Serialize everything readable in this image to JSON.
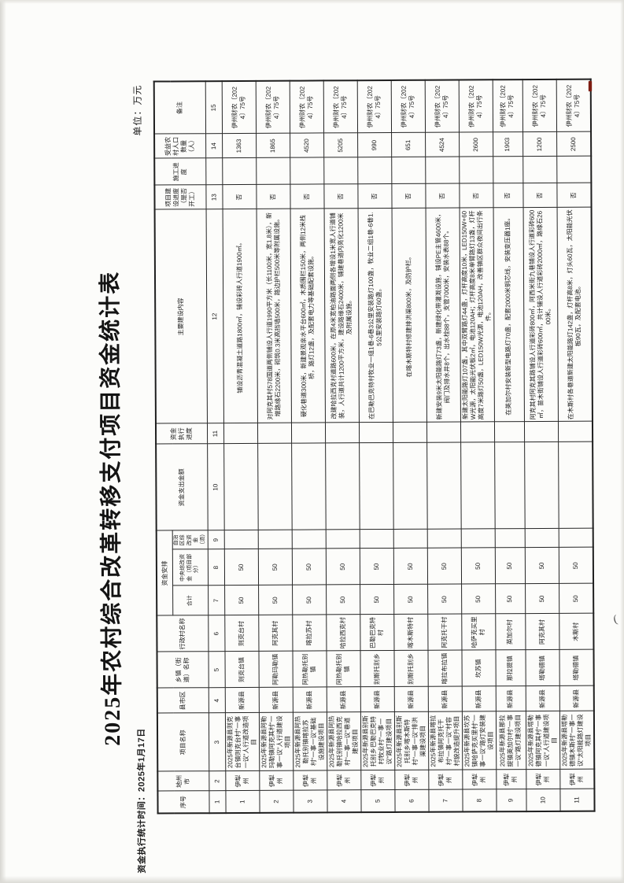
{
  "page": {
    "title": "2025年农村综合改革转移支付项目资金统计表",
    "stat_time": "资金执行统计时间：2025年1月17日",
    "unit_label": "单位：万元",
    "red_mark_color": "#7e1d12"
  },
  "table": {
    "group_header": "资金安排",
    "columns": [
      {
        "label": "序号",
        "num": "1"
      },
      {
        "label": "地州市",
        "num": "2"
      },
      {
        "label": "项目名称",
        "num": "3"
      },
      {
        "label": "县市区",
        "num": "4"
      },
      {
        "label": "乡镇（街道）名称",
        "num": "5"
      },
      {
        "label": "行政村名称",
        "num": "6"
      },
      {
        "label": "合计",
        "num": "7",
        "group": "资金安排"
      },
      {
        "label": "中央综改资金（项目部分）",
        "num": "8",
        "group": "资金安排"
      },
      {
        "label": "自治区综改资金（须）",
        "num": "9",
        "group": "资金安排"
      },
      {
        "label": "资金支出金额",
        "num": "10"
      },
      {
        "label": "资金执行进度",
        "num": "11"
      },
      {
        "label": "主要建设内容",
        "num": "12"
      },
      {
        "label": "项目建设进度（是否开工）",
        "num": "13"
      },
      {
        "label": "施工进度",
        "num": ""
      },
      {
        "label": "受益农村人口数量（人）",
        "num": "14"
      },
      {
        "label": "备注",
        "num": "15"
      }
    ],
    "rows": [
      [
        "1",
        "伊犁州",
        "2025年新源县则克台镇则克台村“一事一议”人行道改造项目",
        "新源县",
        "则克台镇",
        "则克台村",
        "50",
        "50",
        "",
        "",
        "",
        "铺设沥青混凝土道路1800㎡，铺设彩砖人行道1900㎡。",
        "否",
        "",
        "1363",
        "伊州财农〔2024〕75号"
      ],
      [
        "2",
        "伊犁州",
        "2025年新源县阿勒玛勒镇阿克其村“一事一议”人行道建设项目",
        "新源县",
        "阿勒玛勒镇",
        "阿克其村",
        "50",
        "50",
        "",
        "",
        "",
        "对阿克其村578国道两侧铺设人行道1990平方米（长1100米，宽1.8米），新增路缘石2200米，砌筑0.3米高挡墙500米，路边护栏500米等附属设施。",
        "否",
        "",
        "1865",
        "伊州财农〔2024〕75号"
      ],
      [
        "3",
        "伊犁州",
        "2025年新源县阿热勒托别镇喀拉苏村“一事一议”基础设施建设项目",
        "新源县",
        "阿热勒托别镇",
        "喀拉苏村",
        "50",
        "50",
        "",
        "",
        "",
        "硬化巷道300米，新建景观亲水平台600㎡，木质围栏150米，两侧12米栈桥，路灯12盏，及配套电力等基础配套设施。",
        "否",
        "",
        "4520",
        "伊州财农〔2024〕75号"
      ],
      [
        "4",
        "伊犁州",
        "2025年新源县阿热勒托别镇哈拉西克村“一事一议”巷道建设项目",
        "新源县",
        "阿热勒托别镇",
        "哈拉西克村",
        "50",
        "50",
        "",
        "",
        "",
        "改建哈拉西克村道路600米，在原4米宽柏油路面两侧各增设1米宽人行道铺装，人行道共计1200平方米，建设路缘石2400米，铺建巷道内亮化1200米及附属设施。",
        "否",
        "",
        "5205",
        "伊州财农〔2024〕75号"
      ],
      [
        "5",
        "伊犁州",
        "2025年新源县别斯托别乡巴勒巴克特村牧业村“一事一议”路灯建设项目",
        "新源县",
        "别斯托别乡",
        "巴勒巴克特村",
        "50",
        "50",
        "",
        "",
        "",
        "在巴勒巴克特村牧业一组1巷-6巷3公里安装路灯100盏，牧业二组1巷-6巷1.5公里安装路灯60盏。",
        "否",
        "",
        "990",
        "伊州财农〔2024〕75号"
      ],
      [
        "6",
        "伊犁州",
        "2025年新源县别斯托别乡喀木斯特村“一事一议”排洪渠建设项目",
        "新源县",
        "别斯托别乡",
        "喀木斯特村",
        "50",
        "50",
        "",
        "",
        "",
        "在喀木斯特村修建排洪渠800米，及防护栏。",
        "否",
        "",
        "651",
        "伊州财农〔2024〕75号"
      ],
      [
        "7",
        "伊犁州",
        "2025年新源县喀拉布拉镇阿克托干村“一事一议”村容村貌改造提升项目",
        "新源县",
        "喀拉布拉镇",
        "阿克托干村",
        "50",
        "50",
        "",
        "",
        "",
        "新建安装9米太阳能路灯73盏，新建绿化带灌溉设施，铺设PE主管4600米，阀门及排水井8个，出水栓88个，支管7000米，安装水表88个。",
        "否",
        "",
        "4524",
        "伊州财农〔2024〕75号"
      ],
      [
        "8",
        "伊犁州",
        "2025年新源县坎苏镇哈萨克买里村“一事一议”路灯安装建设项目",
        "新源县",
        "坎苏镇",
        "哈萨克买里村",
        "50",
        "50",
        "",
        "",
        "",
        "新建太阳能路灯107盏，其中双臂路灯44盏，灯杆高度10米，LED150W+60W光源，太阳能光伏板2㎡，电池120AH；灯杆高度8米单臂路灯13盏，灯杆高度7米路灯50盏，LED150W光源，电池120AH，改善镇区群众夜间出行条件。",
        "否",
        "",
        "2600",
        "伊州财农〔2024〕75号"
      ],
      [
        "9",
        "伊犁州",
        "2025年新源县那拉提镇英加尔村“一事一议”路灯建设项目",
        "新源县",
        "那拉提镇",
        "英加尔村",
        "50",
        "50",
        "",
        "",
        "",
        "在英加尔村安装新型电路灯70盏，配套2000米铜芯线，安装变压器1座。",
        "否",
        "",
        "1903",
        "伊州财农〔2024〕75号"
      ],
      [
        "10",
        "伊犁州",
        "2025年新源县塔勒德镇阿克其村“一事一议”人行道建设项目",
        "新源县",
        "塔勒德镇",
        "阿克其村",
        "50",
        "50",
        "",
        "",
        "",
        "阿克其村阿克其路铺设人行道彩砖800㎡，阿西米街九巷铺设人行道彩砖600㎡，苗木街铺设人行道彩砖600㎡，共计铺设人行道彩砖2000㎡，路缘石2600米。",
        "否",
        "",
        "1200",
        "伊州财农〔2024〕75号"
      ],
      [
        "11",
        "伊犁州",
        "2025年新源县塔勒德镇木斯村“一事一议”太阳能路灯建设项目",
        "新源县",
        "塔勒德镇",
        "木斯村",
        "50",
        "50",
        "",
        "",
        "",
        "在木斯村各巷道新建太阳能路灯142盏，灯杆高8米，灯头60瓦，太阳能光伏板90瓦，及配套电池。",
        "否",
        "",
        "2500",
        "伊州财农〔2024〕75号"
      ]
    ]
  }
}
